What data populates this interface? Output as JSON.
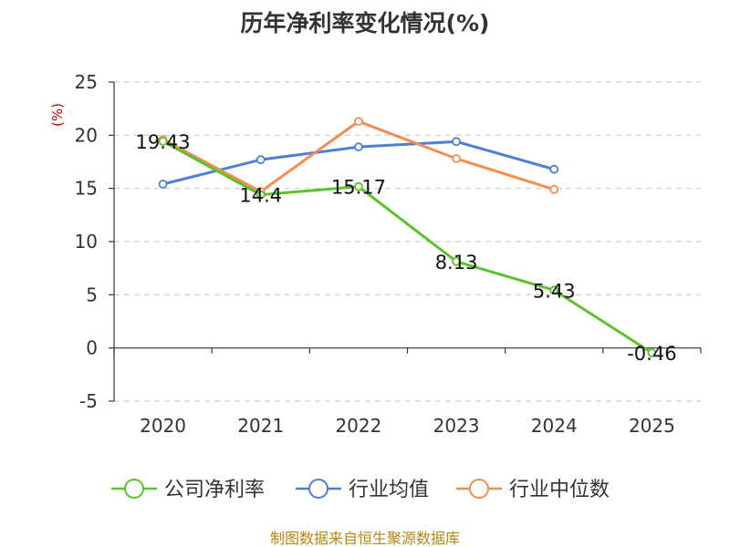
{
  "chart_data": {
    "type": "line",
    "title": "历年净利率变化情况(%)",
    "ylabel": "(%)",
    "xlabel": "",
    "categories": [
      "2020",
      "2021",
      "2022",
      "2023",
      "2024",
      "2025"
    ],
    "ylim": [
      -5,
      25
    ],
    "yticks": [
      "25",
      "20",
      "15",
      "10",
      "5",
      "0",
      "-5"
    ],
    "grid": true,
    "legend_position": "bottom",
    "series": [
      {
        "name": "公司净利率",
        "color": "#5cc22b",
        "values": [
          19.43,
          14.4,
          15.17,
          8.13,
          5.43,
          -0.46
        ],
        "labels": [
          "19.43",
          "14.4",
          "15.17",
          "8.13",
          "5.43",
          "-0.46"
        ]
      },
      {
        "name": "行业均值",
        "color": "#4e7fd6",
        "values": [
          15.4,
          17.7,
          18.9,
          19.4,
          16.8,
          null
        ]
      },
      {
        "name": "行业中位数",
        "color": "#f58d53",
        "values": [
          19.6,
          14.7,
          21.3,
          17.8,
          14.9,
          null
        ]
      }
    ],
    "source": "制图数据来自恒生聚源数据库"
  }
}
